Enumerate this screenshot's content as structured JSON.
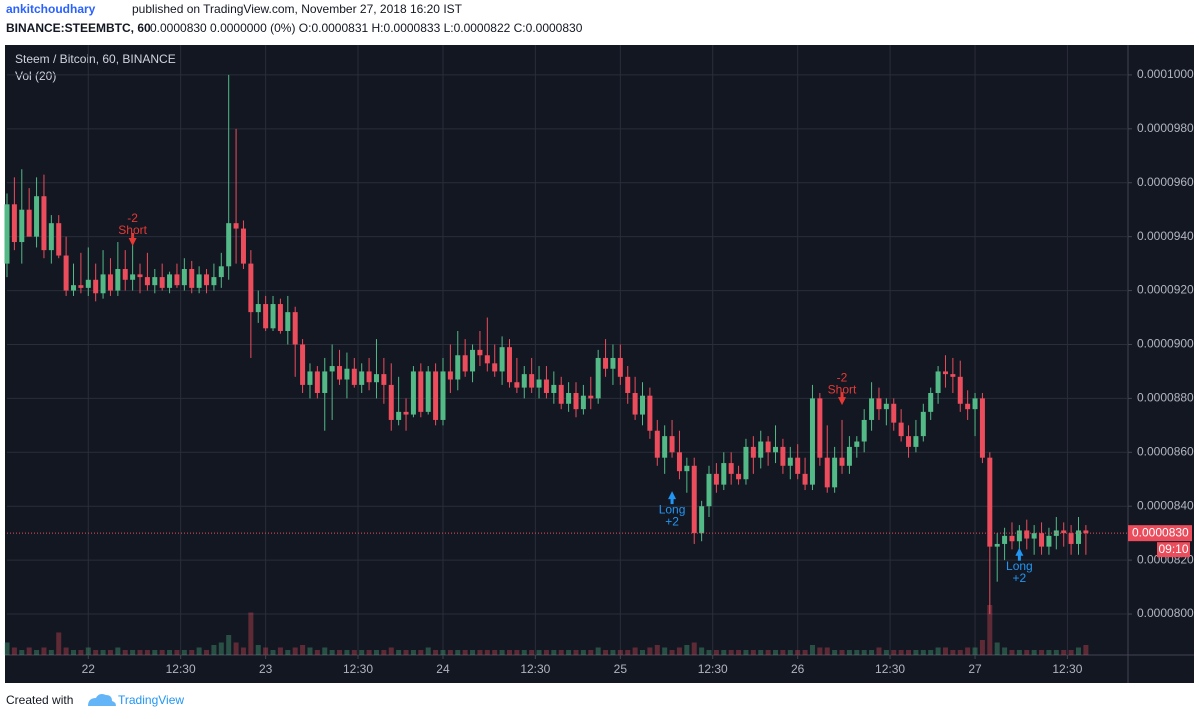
{
  "header": {
    "user": "ankitchoudhary",
    "published": "published on TradingView.com, November 27, 2018 16:20 IST",
    "symbol": "BINANCE:STEEMBTC, 60",
    "quote": "0.0000830 0.0000000 (0%) O:0.0000831 H:0.0000833 L:0.0000822 C:0.0000830"
  },
  "footer": {
    "created": "Created with",
    "brand": "TradingView"
  },
  "chart_data": {
    "type": "candlestick",
    "title": "Steem / Bitcoin, 60, BINANCE",
    "volume_label": "Vol (20)",
    "up_color": "#53b987",
    "down_color": "#eb4d5c",
    "grid": true,
    "ylim": [
      7.848e-05,
      0.00010111
    ],
    "yticks": [
      {
        "value": 8e-05,
        "label": "0.0000800"
      },
      {
        "value": 8.2e-05,
        "label": "0.0000820"
      },
      {
        "value": 8.4e-05,
        "label": "0.0000840"
      },
      {
        "value": 8.6e-05,
        "label": "0.0000860"
      },
      {
        "value": 8.8e-05,
        "label": "0.0000880"
      },
      {
        "value": 9e-05,
        "label": "0.0000900"
      },
      {
        "value": 9.2e-05,
        "label": "0.0000920"
      },
      {
        "value": 9.4e-05,
        "label": "0.0000940"
      },
      {
        "value": 9.6e-05,
        "label": "0.0000960"
      },
      {
        "value": 9.8e-05,
        "label": "0.0000980"
      },
      {
        "value": 0.0001,
        "label": "0.0001000"
      }
    ],
    "xlim": [
      0,
      151.7
    ],
    "xticks": [
      {
        "value": 11,
        "label": "22"
      },
      {
        "value": 23.5,
        "label": "12:30"
      },
      {
        "value": 35,
        "label": "23"
      },
      {
        "value": 47.5,
        "label": "12:30"
      },
      {
        "value": 59,
        "label": "24"
      },
      {
        "value": 71.5,
        "label": "12:30"
      },
      {
        "value": 83,
        "label": "25"
      },
      {
        "value": 95.5,
        "label": "12:30"
      },
      {
        "value": 107,
        "label": "26"
      },
      {
        "value": 119.5,
        "label": "12:30"
      },
      {
        "value": 131,
        "label": "27"
      },
      {
        "value": 143.5,
        "label": "12:30"
      }
    ],
    "ohlc": [
      [
        9.3e-05,
        9.56e-05,
        9.25e-05,
        9.52e-05
      ],
      [
        9.52e-05,
        9.62e-05,
        9.35e-05,
        9.38e-05
      ],
      [
        9.38e-05,
        9.65e-05,
        9.3e-05,
        9.5e-05
      ],
      [
        9.5e-05,
        9.58e-05,
        9.4e-05,
        9.4e-05
      ],
      [
        9.4e-05,
        9.62e-05,
        9.36e-05,
        9.55e-05
      ],
      [
        9.55e-05,
        9.63e-05,
        9.32e-05,
        9.35e-05
      ],
      [
        9.35e-05,
        9.48e-05,
        9.3e-05,
        9.45e-05
      ],
      [
        9.45e-05,
        9.48e-05,
        9.32e-05,
        9.33e-05
      ],
      [
        9.33e-05,
        9.4e-05,
        9.18e-05,
        9.2e-05
      ],
      [
        9.2e-05,
        9.3e-05,
        9.18e-05,
        9.22e-05
      ],
      [
        9.22e-05,
        9.34e-05,
        9.19e-05,
        9.21e-05
      ],
      [
        9.21e-05,
        9.36e-05,
        9.18e-05,
        9.24e-05
      ],
      [
        9.24e-05,
        9.3e-05,
        9.16e-05,
        9.19e-05
      ],
      [
        9.19e-05,
        9.35e-05,
        9.17e-05,
        9.26e-05
      ],
      [
        9.26e-05,
        9.32e-05,
        9.18e-05,
        9.2e-05
      ],
      [
        9.2e-05,
        9.38e-05,
        9.18e-05,
        9.28e-05
      ],
      [
        9.28e-05,
        9.35e-05,
        9.2e-05,
        9.24e-05
      ],
      [
        9.24e-05,
        9.38e-05,
        9.2e-05,
        9.26e-05
      ],
      [
        9.26e-05,
        9.3e-05,
        9.19e-05,
        9.25e-05
      ],
      [
        9.25e-05,
        9.34e-05,
        9.2e-05,
        9.22e-05
      ],
      [
        9.22e-05,
        9.28e-05,
        9.19e-05,
        9.25e-05
      ],
      [
        9.25e-05,
        9.3e-05,
        9.2e-05,
        9.21e-05
      ],
      [
        9.21e-05,
        9.27e-05,
        9.19e-05,
        9.26e-05
      ],
      [
        9.26e-05,
        9.3e-05,
        9.21e-05,
        9.22e-05
      ],
      [
        9.22e-05,
        9.32e-05,
        9.2e-05,
        9.28e-05
      ],
      [
        9.28e-05,
        9.31e-05,
        9.19e-05,
        9.21e-05
      ],
      [
        9.21e-05,
        9.29e-05,
        9.19e-05,
        9.26e-05
      ],
      [
        9.26e-05,
        9.28e-05,
        9.19e-05,
        9.22e-05
      ],
      [
        9.22e-05,
        9.3e-05,
        9.2e-05,
        9.25e-05
      ],
      [
        9.25e-05,
        9.34e-05,
        9.21e-05,
        9.29e-05
      ],
      [
        9.29e-05,
        0.0001,
        9.24e-05,
        9.45e-05
      ],
      [
        9.45e-05,
        9.8e-05,
        9.3e-05,
        9.43e-05
      ],
      [
        9.43e-05,
        9.46e-05,
        9.28e-05,
        9.3e-05
      ],
      [
        9.3e-05,
        9.35e-05,
        8.95e-05,
        9.12e-05
      ],
      [
        9.12e-05,
        9.2e-05,
        9.08e-05,
        9.15e-05
      ],
      [
        9.15e-05,
        9.18e-05,
        9.05e-05,
        9.06e-05
      ],
      [
        9.06e-05,
        9.18e-05,
        9.05e-05,
        9.15e-05
      ],
      [
        9.15e-05,
        9.17e-05,
        9.04e-05,
        9.05e-05
      ],
      [
        9.05e-05,
        9.18e-05,
        9e-05,
        9.12e-05
      ],
      [
        9.12e-05,
        9.14e-05,
        8.88e-05,
        9e-05
      ],
      [
        9e-05,
        9.02e-05,
        8.82e-05,
        8.85e-05
      ],
      [
        8.85e-05,
        8.93e-05,
        8.8e-05,
        8.9e-05
      ],
      [
        8.9e-05,
        8.92e-05,
        8.8e-05,
        8.82e-05
      ],
      [
        8.82e-05,
        8.95e-05,
        8.68e-05,
        8.9e-05
      ],
      [
        8.9e-05,
        9e-05,
        8.72e-05,
        8.92e-05
      ],
      [
        8.92e-05,
        8.98e-05,
        8.85e-05,
        8.87e-05
      ],
      [
        8.87e-05,
        8.97e-05,
        8.8e-05,
        8.91e-05
      ],
      [
        8.91e-05,
        8.95e-05,
        8.84e-05,
        8.85e-05
      ],
      [
        8.85e-05,
        8.93e-05,
        8.82e-05,
        8.9e-05
      ],
      [
        8.9e-05,
        8.95e-05,
        8.83e-05,
        8.86e-05
      ],
      [
        8.86e-05,
        9.02e-05,
        8.8e-05,
        8.89e-05
      ],
      [
        8.89e-05,
        8.95e-05,
        8.78e-05,
        8.85e-05
      ],
      [
        8.85e-05,
        8.93e-05,
        8.68e-05,
        8.72e-05
      ],
      [
        8.72e-05,
        8.88e-05,
        8.7e-05,
        8.75e-05
      ],
      [
        8.75e-05,
        8.8e-05,
        8.68e-05,
        8.74e-05
      ],
      [
        8.74e-05,
        8.92e-05,
        8.73e-05,
        8.9e-05
      ],
      [
        8.9e-05,
        8.93e-05,
        8.73e-05,
        8.75e-05
      ],
      [
        8.75e-05,
        8.92e-05,
        8.74e-05,
        8.9e-05
      ],
      [
        8.9e-05,
        8.93e-05,
        8.7e-05,
        8.72e-05
      ],
      [
        8.72e-05,
        8.95e-05,
        8.7e-05,
        8.9e-05
      ],
      [
        8.9e-05,
        9e-05,
        8.82e-05,
        8.87e-05
      ],
      [
        8.87e-05,
        9.05e-05,
        8.83e-05,
        8.96e-05
      ],
      [
        8.96e-05,
        9.02e-05,
        8.88e-05,
        8.9e-05
      ],
      [
        8.9e-05,
        9e-05,
        8.86e-05,
        8.98e-05
      ],
      [
        8.98e-05,
        9.05e-05,
        8.92e-05,
        8.96e-05
      ],
      [
        8.96e-05,
        9.1e-05,
        8.9e-05,
        8.93e-05
      ],
      [
        8.93e-05,
        9e-05,
        8.88e-05,
        8.9e-05
      ],
      [
        8.9e-05,
        9.03e-05,
        8.85e-05,
        8.99e-05
      ],
      [
        8.99e-05,
        9.02e-05,
        8.84e-05,
        8.86e-05
      ],
      [
        8.86e-05,
        8.95e-05,
        8.82e-05,
        8.84e-05
      ],
      [
        8.84e-05,
        8.92e-05,
        8.8e-05,
        8.89e-05
      ],
      [
        8.89e-05,
        8.95e-05,
        8.82e-05,
        8.84e-05
      ],
      [
        8.84e-05,
        8.92e-05,
        8.8e-05,
        8.87e-05
      ],
      [
        8.87e-05,
        8.92e-05,
        8.8e-05,
        8.82e-05
      ],
      [
        8.82e-05,
        8.9e-05,
        8.78e-05,
        8.85e-05
      ],
      [
        8.85e-05,
        8.88e-05,
        8.76e-05,
        8.78e-05
      ],
      [
        8.78e-05,
        8.86e-05,
        8.75e-05,
        8.82e-05
      ],
      [
        8.82e-05,
        8.86e-05,
        8.73e-05,
        8.76e-05
      ],
      [
        8.76e-05,
        8.85e-05,
        8.74e-05,
        8.81e-05
      ],
      [
        8.81e-05,
        8.88e-05,
        8.76e-05,
        8.8e-05
      ],
      [
        8.8e-05,
        8.98e-05,
        8.78e-05,
        8.95e-05
      ],
      [
        8.95e-05,
        9.02e-05,
        8.88e-05,
        8.91e-05
      ],
      [
        8.91e-05,
        9e-05,
        8.85e-05,
        8.95e-05
      ],
      [
        8.95e-05,
        9e-05,
        8.85e-05,
        8.88e-05
      ],
      [
        8.88e-05,
        8.92e-05,
        8.78e-05,
        8.82e-05
      ],
      [
        8.82e-05,
        8.88e-05,
        8.72e-05,
        8.74e-05
      ],
      [
        8.74e-05,
        8.86e-05,
        8.7e-05,
        8.81e-05
      ],
      [
        8.81e-05,
        8.84e-05,
        8.65e-05,
        8.68e-05
      ],
      [
        8.68e-05,
        8.72e-05,
        8.55e-05,
        8.58e-05
      ],
      [
        8.58e-05,
        8.7e-05,
        8.52e-05,
        8.66e-05
      ],
      [
        8.66e-05,
        8.72e-05,
        8.58e-05,
        8.6e-05
      ],
      [
        8.6e-05,
        8.68e-05,
        8.5e-05,
        8.53e-05
      ],
      [
        8.53e-05,
        8.58e-05,
        8.45e-05,
        8.55e-05
      ],
      [
        8.55e-05,
        8.58e-05,
        8.26e-05,
        8.3e-05
      ],
      [
        8.3e-05,
        8.42e-05,
        8.27e-05,
        8.4e-05
      ],
      [
        8.4e-05,
        8.55e-05,
        8.36e-05,
        8.52e-05
      ],
      [
        8.52e-05,
        8.56e-05,
        8.45e-05,
        8.48e-05
      ],
      [
        8.48e-05,
        8.6e-05,
        8.46e-05,
        8.56e-05
      ],
      [
        8.56e-05,
        8.6e-05,
        8.48e-05,
        8.52e-05
      ],
      [
        8.52e-05,
        8.55e-05,
        8.48e-05,
        8.5e-05
      ],
      [
        8.5e-05,
        8.65e-05,
        8.48e-05,
        8.62e-05
      ],
      [
        8.62e-05,
        8.66e-05,
        8.52e-05,
        8.58e-05
      ],
      [
        8.58e-05,
        8.68e-05,
        8.54e-05,
        8.64e-05
      ],
      [
        8.64e-05,
        8.66e-05,
        8.55e-05,
        8.6e-05
      ],
      [
        8.6e-05,
        8.7e-05,
        8.56e-05,
        8.62e-05
      ],
      [
        8.62e-05,
        8.65e-05,
        8.52e-05,
        8.55e-05
      ],
      [
        8.55e-05,
        8.62e-05,
        8.5e-05,
        8.58e-05
      ],
      [
        8.58e-05,
        8.63e-05,
        8.5e-05,
        8.52e-05
      ],
      [
        8.52e-05,
        8.58e-05,
        8.46e-05,
        8.48e-05
      ],
      [
        8.48e-05,
        8.85e-05,
        8.46e-05,
        8.8e-05
      ],
      [
        8.8e-05,
        8.82e-05,
        8.55e-05,
        8.58e-05
      ],
      [
        8.58e-05,
        8.7e-05,
        8.45e-05,
        8.47e-05
      ],
      [
        8.47e-05,
        8.62e-05,
        8.45e-05,
        8.58e-05
      ],
      [
        8.58e-05,
        8.72e-05,
        8.52e-05,
        8.55e-05
      ],
      [
        8.55e-05,
        8.66e-05,
        8.52e-05,
        8.62e-05
      ],
      [
        8.62e-05,
        8.66e-05,
        8.58e-05,
        8.64e-05
      ],
      [
        8.64e-05,
        8.76e-05,
        8.6e-05,
        8.72e-05
      ],
      [
        8.72e-05,
        8.86e-05,
        8.68e-05,
        8.8e-05
      ],
      [
        8.8e-05,
        8.84e-05,
        8.72e-05,
        8.76e-05
      ],
      [
        8.76e-05,
        8.8e-05,
        8.7e-05,
        8.78e-05
      ],
      [
        8.78e-05,
        8.8e-05,
        8.68e-05,
        8.71e-05
      ],
      [
        8.71e-05,
        8.76e-05,
        8.64e-05,
        8.66e-05
      ],
      [
        8.66e-05,
        8.7e-05,
        8.58e-05,
        8.62e-05
      ],
      [
        8.62e-05,
        8.72e-05,
        8.6e-05,
        8.66e-05
      ],
      [
        8.66e-05,
        8.78e-05,
        8.64e-05,
        8.75e-05
      ],
      [
        8.75e-05,
        8.84e-05,
        8.72e-05,
        8.82e-05
      ],
      [
        8.82e-05,
        8.92e-05,
        8.78e-05,
        8.9e-05
      ],
      [
        8.9e-05,
        8.96e-05,
        8.84e-05,
        8.89e-05
      ],
      [
        8.89e-05,
        8.95e-05,
        8.82e-05,
        8.88e-05
      ],
      [
        8.88e-05,
        8.94e-05,
        8.75e-05,
        8.78e-05
      ],
      [
        8.78e-05,
        8.83e-05,
        8.72e-05,
        8.76e-05
      ],
      [
        8.76e-05,
        8.82e-05,
        8.66e-05,
        8.8e-05
      ],
      [
        8.8e-05,
        8.82e-05,
        8.56e-05,
        8.58e-05
      ],
      [
        8.58e-05,
        8.6e-05,
        8e-05,
        8.25e-05
      ],
      [
        8.25e-05,
        8.3e-05,
        8.12e-05,
        8.26e-05
      ],
      [
        8.26e-05,
        8.32e-05,
        8.2e-05,
        8.29e-05
      ],
      [
        8.29e-05,
        8.34e-05,
        8.24e-05,
        8.27e-05
      ],
      [
        8.27e-05,
        8.33e-05,
        8.22e-05,
        8.31e-05
      ],
      [
        8.31e-05,
        8.35e-05,
        8.24e-05,
        8.28e-05
      ],
      [
        8.28e-05,
        8.33e-05,
        8.22e-05,
        8.3e-05
      ],
      [
        8.3e-05,
        8.34e-05,
        8.22e-05,
        8.25e-05
      ],
      [
        8.25e-05,
        8.32e-05,
        8.22e-05,
        8.29e-05
      ],
      [
        8.29e-05,
        8.36e-05,
        8.24e-05,
        8.31e-05
      ],
      [
        8.31e-05,
        8.34e-05,
        8.25e-05,
        8.3e-05
      ],
      [
        8.3e-05,
        8.33e-05,
        8.22e-05,
        8.26e-05
      ],
      [
        8.26e-05,
        8.36e-05,
        8.22e-05,
        8.31e-05
      ],
      [
        8.31e-05,
        8.33e-05,
        8.22e-05,
        8.3e-05
      ]
    ],
    "volume": [
      5,
      3,
      2,
      3,
      2,
      3,
      2,
      9,
      3,
      2,
      2,
      3,
      2,
      2,
      2,
      3,
      2,
      2,
      2,
      2,
      2,
      2,
      2,
      2,
      2,
      2,
      3,
      2,
      4,
      5,
      8,
      5,
      3,
      17,
      4,
      3,
      2,
      3,
      2,
      3,
      4,
      3,
      2,
      3,
      2,
      2,
      2,
      2,
      2,
      2,
      2,
      2,
      3,
      2,
      2,
      2,
      2,
      3,
      2,
      2,
      2,
      2,
      2,
      2,
      2,
      2,
      2,
      2,
      2,
      2,
      2,
      2,
      2,
      2,
      2,
      2,
      2,
      2,
      2,
      2,
      3,
      2,
      2,
      2,
      2,
      3,
      2,
      3,
      4,
      3,
      2,
      3,
      4,
      5,
      3,
      2,
      2,
      2,
      2,
      2,
      2,
      2,
      2,
      2,
      2,
      2,
      2,
      2,
      2,
      4,
      3,
      3,
      2,
      2,
      2,
      2,
      2,
      2,
      3,
      2,
      2,
      2,
      2,
      2,
      2,
      2,
      3,
      3,
      2,
      2,
      3,
      3,
      6,
      20,
      5,
      3,
      2,
      2,
      2,
      2,
      2,
      2,
      2,
      2,
      2,
      3,
      4
    ],
    "annotations": [
      {
        "index": 17,
        "price": 9.38e-05,
        "top": "-2",
        "bottom": "Short",
        "dir": "down",
        "color": "#e53935"
      },
      {
        "index": 90,
        "price": 8.43e-05,
        "top": "Long",
        "bottom": "+2",
        "dir": "up",
        "color": "#2196f3"
      },
      {
        "index": 113,
        "price": 8.79e-05,
        "top": "-2",
        "bottom": "Short",
        "dir": "down",
        "color": "#e53935"
      },
      {
        "index": 137,
        "price": 8.22e-05,
        "top": "Long",
        "bottom": "+2",
        "dir": "up",
        "color": "#2196f3"
      }
    ],
    "last": {
      "value": 8.3e-05,
      "label": "0.0000830"
    },
    "countdown": "09:10"
  }
}
